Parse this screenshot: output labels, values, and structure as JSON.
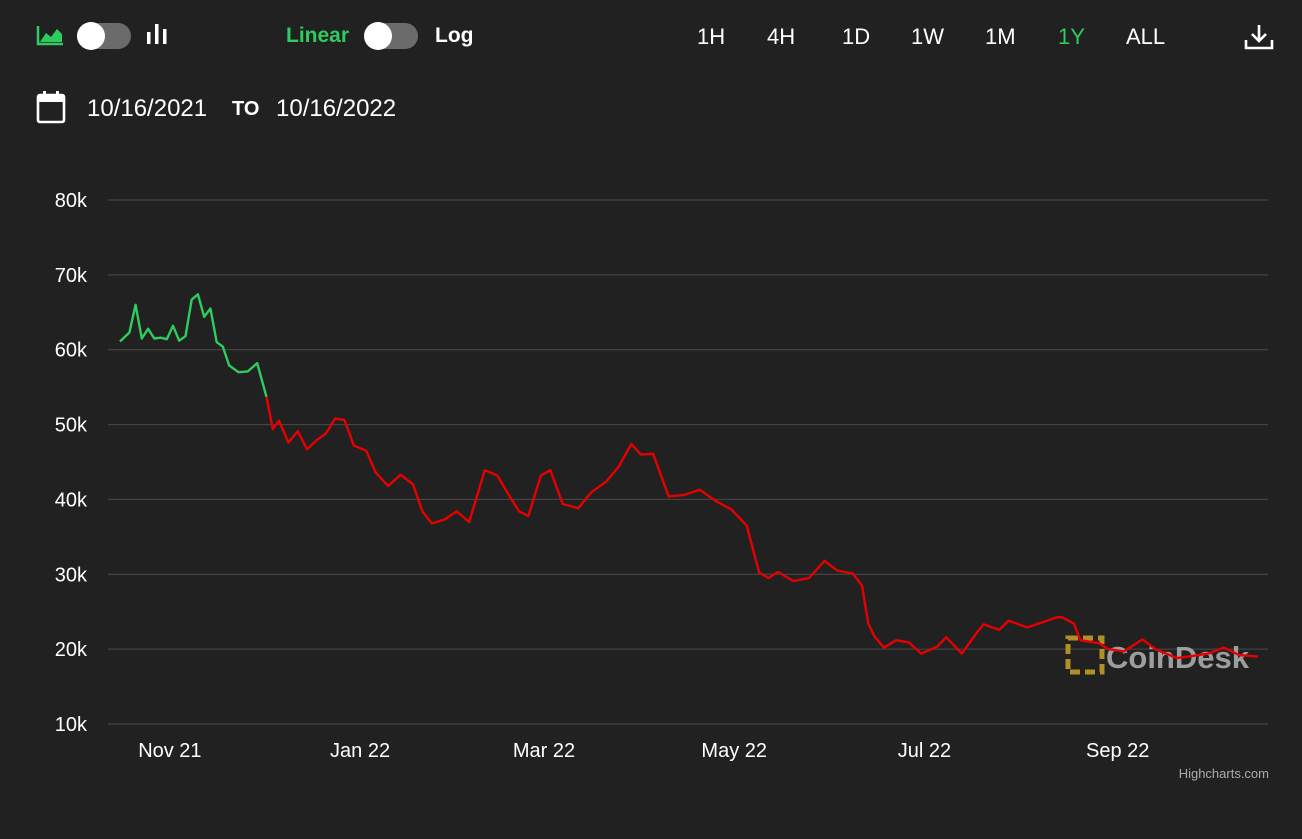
{
  "toolbar": {
    "chart_type_icons": [
      "area-chart-icon",
      "bar-chart-icon"
    ],
    "scale_linear_label": "Linear",
    "scale_log_label": "Log",
    "ranges": [
      "1H",
      "4H",
      "1D",
      "1W",
      "1M",
      "1Y",
      "ALL"
    ],
    "active_range": "1Y",
    "download_icon": "download-icon"
  },
  "date_range": {
    "icon": "calendar-icon",
    "from": "10/16/2021",
    "to_label": "TO",
    "to": "10/16/2022"
  },
  "colors": {
    "background": "#212121",
    "gain": "#2ecc5e",
    "loss": "#e60000",
    "grid": "#4a4a4a",
    "text": "#ffffff",
    "watermark": "#c9a227"
  },
  "watermark": "CoinDesk",
  "credit": "Highcharts.com",
  "chart_data": {
    "type": "line",
    "x_start": "2021-10-16",
    "x_end": "2022-10-16",
    "ylim": [
      10000,
      80000
    ],
    "y_ticks": [
      10000,
      20000,
      30000,
      40000,
      50000,
      60000,
      70000,
      80000
    ],
    "y_tick_labels": [
      "10k",
      "20k",
      "30k",
      "40k",
      "50k",
      "60k",
      "70k",
      "80k"
    ],
    "x_ticks": [
      "2021-11-01",
      "2022-01-01",
      "2022-03-01",
      "2022-05-01",
      "2022-07-01",
      "2022-09-01"
    ],
    "x_tick_labels": [
      "Nov 21",
      "Jan 22",
      "Mar 22",
      "May 22",
      "Jul 22",
      "Sep 22"
    ],
    "grid": true,
    "threshold_color_change_at": "2021-12-02",
    "series": [
      {
        "x": [
          "2021-10-16",
          "2021-10-19",
          "2021-10-21",
          "2021-10-23",
          "2021-10-25",
          "2021-10-27",
          "2021-10-29",
          "2021-10-31",
          "2021-11-02",
          "2021-11-04",
          "2021-11-06",
          "2021-11-08",
          "2021-11-10",
          "2021-11-12",
          "2021-11-14",
          "2021-11-16",
          "2021-11-18",
          "2021-11-20",
          "2021-11-23",
          "2021-11-26",
          "2021-11-29",
          "2021-12-02",
          "2021-12-04",
          "2021-12-06",
          "2021-12-09",
          "2021-12-12",
          "2021-12-15",
          "2021-12-18",
          "2021-12-21",
          "2021-12-24",
          "2021-12-27",
          "2021-12-30",
          "2022-01-03",
          "2022-01-06",
          "2022-01-10",
          "2022-01-14",
          "2022-01-18",
          "2022-01-21",
          "2022-01-24",
          "2022-01-28",
          "2022-02-01",
          "2022-02-05",
          "2022-02-10",
          "2022-02-14",
          "2022-02-18",
          "2022-02-21",
          "2022-02-24",
          "2022-02-28",
          "2022-03-03",
          "2022-03-07",
          "2022-03-12",
          "2022-03-16",
          "2022-03-21",
          "2022-03-25",
          "2022-03-29",
          "2022-04-01",
          "2022-04-05",
          "2022-04-10",
          "2022-04-15",
          "2022-04-20",
          "2022-04-25",
          "2022-04-30",
          "2022-05-05",
          "2022-05-09",
          "2022-05-12",
          "2022-05-15",
          "2022-05-20",
          "2022-05-25",
          "2022-05-30",
          "2022-06-03",
          "2022-06-08",
          "2022-06-11",
          "2022-06-13",
          "2022-06-15",
          "2022-06-18",
          "2022-06-22",
          "2022-06-26",
          "2022-06-30",
          "2022-07-05",
          "2022-07-08",
          "2022-07-13",
          "2022-07-18",
          "2022-07-20",
          "2022-07-25",
          "2022-07-28",
          "2022-08-03",
          "2022-08-08",
          "2022-08-12",
          "2022-08-14",
          "2022-08-18",
          "2022-08-20",
          "2022-08-26",
          "2022-08-29",
          "2022-09-03",
          "2022-09-09",
          "2022-09-13",
          "2022-09-16",
          "2022-09-20",
          "2022-09-25",
          "2022-09-30",
          "2022-10-05",
          "2022-10-10",
          "2022-10-16"
        ],
        "y": [
          61100,
          62300,
          66000,
          61500,
          62800,
          61500,
          61600,
          61400,
          63200,
          61200,
          61800,
          66700,
          67400,
          64400,
          65500,
          61000,
          60400,
          57900,
          57000,
          57100,
          58200,
          53700,
          49400,
          50500,
          47600,
          49100,
          46700,
          47900,
          48800,
          50800,
          50600,
          47200,
          46500,
          43600,
          41800,
          43300,
          42000,
          38400,
          36800,
          37300,
          38400,
          37000,
          43900,
          43200,
          40400,
          38400,
          37800,
          43200,
          43900,
          39400,
          38800,
          40900,
          42400,
          44400,
          47400,
          46000,
          46100,
          40400,
          40600,
          41300,
          39800,
          38700,
          36500,
          30200,
          29500,
          30300,
          29100,
          29500,
          31800,
          30500,
          30100,
          28500,
          23400,
          21700,
          20200,
          21200,
          20900,
          19400,
          20300,
          21600,
          19400,
          22300,
          23300,
          22600,
          23800,
          22900,
          23600,
          24200,
          24300,
          23400,
          21200,
          20800,
          20000,
          19700,
          21300,
          20000,
          19500,
          18800,
          19100,
          19400,
          20200,
          19200,
          19000
        ]
      }
    ]
  }
}
